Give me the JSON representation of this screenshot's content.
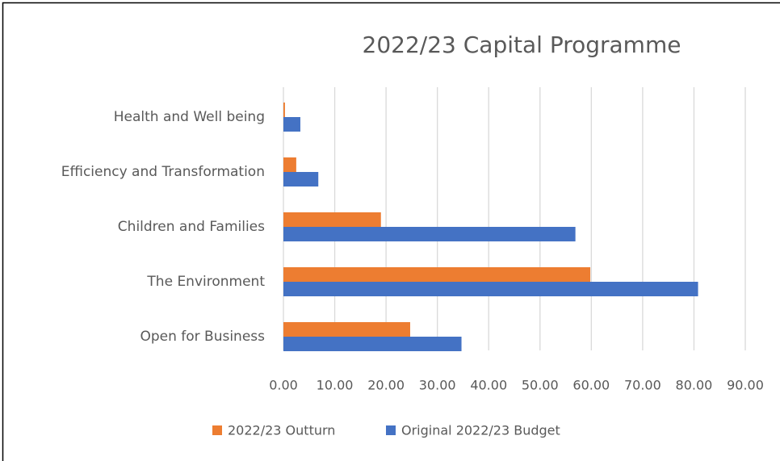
{
  "chart_data": {
    "type": "hbar",
    "title": "2022/23 Capital Programme",
    "categories": [
      "Health and Well being",
      "Efficiency and Transformation",
      "Children and Families",
      "The Environment",
      "Open for Business"
    ],
    "series": [
      {
        "name": "2022/23 Outturn",
        "color": "#ed7d31",
        "values": [
          0.3,
          2.5,
          19.0,
          59.8,
          24.7
        ]
      },
      {
        "name": "Original 2022/23 Budget",
        "color": "#4472c4",
        "values": [
          3.3,
          6.8,
          56.9,
          80.8,
          34.7
        ]
      }
    ],
    "xlim": [
      0,
      90
    ],
    "xticks": [
      {
        "value": 0,
        "label": "0.00"
      },
      {
        "value": 10,
        "label": "10.00"
      },
      {
        "value": 20,
        "label": "20.00"
      },
      {
        "value": 30,
        "label": "30.00"
      },
      {
        "value": 40,
        "label": "40.00"
      },
      {
        "value": 50,
        "label": "50.00"
      },
      {
        "value": 60,
        "label": "60.00"
      },
      {
        "value": 70,
        "label": "70.00"
      },
      {
        "value": 80,
        "label": "80.00"
      },
      {
        "value": 90,
        "label": "90.00"
      }
    ],
    "grid": true,
    "legend": "bottom"
  }
}
